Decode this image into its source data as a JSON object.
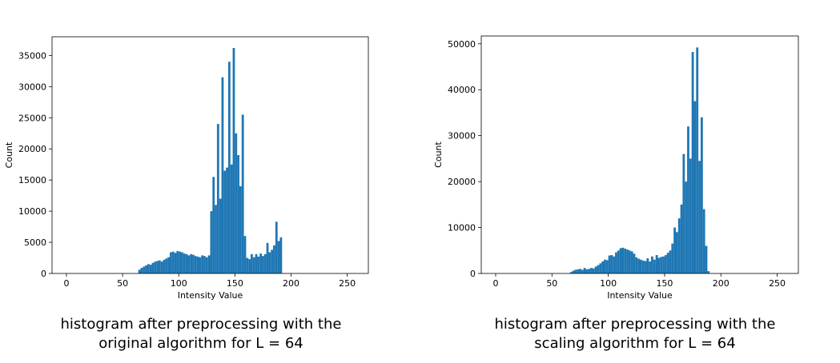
{
  "chart_data": [
    {
      "type": "histogram",
      "xlabel": "Intensity Value",
      "ylabel": "Count",
      "color": "#1f77b4",
      "caption": "histogram after preprocessing with the original algorithm for L = 64",
      "xlim": [
        -12.8,
        268.8
      ],
      "ylim": [
        0,
        38000
      ],
      "xticks": [
        0,
        50,
        100,
        150,
        200,
        250
      ],
      "yticks": [
        0,
        5000,
        10000,
        15000,
        20000,
        25000,
        30000,
        35000
      ],
      "bins": [
        64,
        66,
        68,
        70,
        72,
        74,
        76,
        78,
        80,
        82,
        84,
        86,
        88,
        90,
        92,
        94,
        96,
        98,
        100,
        102,
        104,
        106,
        108,
        110,
        112,
        114,
        116,
        118,
        120,
        122,
        124,
        126,
        128,
        130,
        132,
        134,
        136,
        138,
        140,
        142,
        144,
        146,
        148,
        150,
        152,
        154,
        156,
        158,
        160,
        162,
        164,
        166,
        168,
        170,
        172,
        174,
        176,
        178,
        180,
        182,
        184,
        186,
        188,
        190,
        192
      ],
      "values": [
        600,
        900,
        1100,
        1300,
        1500,
        1400,
        1700,
        1900,
        2000,
        2100,
        1900,
        2200,
        2400,
        2600,
        3400,
        3500,
        3300,
        3600,
        3500,
        3400,
        3200,
        3100,
        2900,
        3100,
        3000,
        2800,
        2700,
        2600,
        2900,
        2800,
        2600,
        2900,
        10000,
        15500,
        11000,
        24000,
        12000,
        31500,
        16500,
        17000,
        34000,
        17500,
        36200,
        22500,
        19000,
        14000,
        25500,
        6000,
        2500,
        2300,
        3100,
        2600,
        3100,
        2700,
        3200,
        2800,
        3100,
        4900,
        3400,
        3800,
        4500,
        8300,
        5200,
        5800
      ]
    },
    {
      "type": "histogram",
      "xlabel": "Intensity Value",
      "ylabel": "Count",
      "color": "#1f77b4",
      "caption": "histogram after preprocessing with the scaling algorithm for L = 64",
      "xlim": [
        -12.8,
        268.8
      ],
      "ylim": [
        0,
        51700
      ],
      "xticks": [
        0,
        50,
        100,
        150,
        200,
        250
      ],
      "yticks": [
        0,
        10000,
        20000,
        30000,
        40000,
        50000
      ],
      "bins": [
        66,
        68,
        70,
        72,
        74,
        76,
        78,
        80,
        82,
        84,
        86,
        88,
        90,
        92,
        94,
        96,
        98,
        100,
        102,
        104,
        106,
        108,
        110,
        112,
        114,
        116,
        118,
        120,
        122,
        124,
        126,
        128,
        130,
        132,
        134,
        136,
        138,
        140,
        142,
        144,
        146,
        148,
        150,
        152,
        154,
        156,
        158,
        160,
        162,
        164,
        166,
        168,
        170,
        172,
        174,
        176,
        178,
        180,
        182,
        184,
        186,
        188,
        190
      ],
      "values": [
        300,
        600,
        800,
        900,
        1000,
        800,
        1200,
        900,
        1000,
        1200,
        1100,
        1500,
        1800,
        2200,
        2600,
        3000,
        2900,
        3900,
        4000,
        3700,
        4600,
        5000,
        5500,
        5600,
        5400,
        5200,
        5000,
        4800,
        4300,
        3500,
        3200,
        3000,
        2800,
        2700,
        3300,
        2600,
        3700,
        3000,
        4000,
        3400,
        3600,
        3700,
        4000,
        4500,
        5000,
        6500,
        10000,
        9000,
        12000,
        15000,
        26000,
        20000,
        32000,
        25000,
        48200,
        37500,
        49200,
        24500,
        34000,
        14000,
        6000,
        500
      ]
    }
  ]
}
